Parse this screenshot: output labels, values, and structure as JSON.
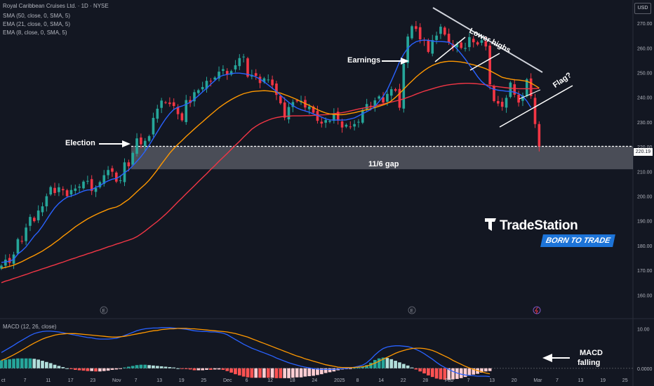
{
  "header": {
    "title": "Royal Caribbean Cruises Ltd. · 1D · NYSE",
    "indicators": [
      "SMA (50, close, 0, SMA, 5)",
      "EMA (21, close, 0, SMA, 5)",
      "EMA (8, close, 0, SMA, 5)"
    ],
    "macd_label": "MACD (12, 26, close)",
    "currency": "USD"
  },
  "annotations": {
    "election": "Election",
    "earnings": "Earnings",
    "lower_highs": "Lower highs",
    "flag": "Flag?",
    "gap": "11/6 gap",
    "macd_falling_1": "MACD",
    "macd_falling_2": "falling"
  },
  "brand": {
    "name": "TradeStation",
    "tagline": "BORN TO TRADE"
  },
  "colors": {
    "background": "#131722",
    "up": "#26a69a",
    "down": "#f23645",
    "sma50": "#f23645",
    "ema21": "#ff9800",
    "ema8": "#2962ff",
    "macd": "#2962ff",
    "signal": "#ff9800",
    "gap_zone": "#9598a1"
  },
  "chart_data": {
    "type": "line",
    "price": {
      "ylim": [
        153,
        276
      ],
      "yticks": [
        160,
        170,
        180,
        190,
        200,
        210,
        220,
        230,
        240,
        250,
        260,
        270
      ],
      "ytick_labels": [
        "160.00",
        "170.00",
        "180.00",
        "190.00",
        "200.00",
        "210.00",
        "220.00",
        "230.00",
        "240.00",
        "250.00",
        "260.00",
        "270.00"
      ],
      "last_price": 220.19,
      "last_price_label": "220.19",
      "gap_zone": [
        210.9,
        220.2
      ],
      "closes": [
        171.9,
        174.3,
        173.0,
        176.4,
        182.6,
        181.8,
        187.3,
        191.6,
        189.9,
        194.2,
        195.9,
        200.0,
        203.7,
        201.3,
        203.6,
        202.4,
        200.0,
        202.5,
        203.1,
        203.9,
        205.9,
        206.2,
        202.1,
        203.3,
        205.7,
        208.5,
        210.6,
        209.9,
        205.9,
        206.4,
        213.7,
        212.1,
        217.5,
        223.4,
        221.0,
        222.4,
        224.3,
        231.7,
        235.4,
        238.7,
        237.9,
        237.3,
        236.5,
        233.2,
        230.7,
        238.9,
        237.7,
        242.1,
        242.9,
        244.2,
        246.7,
        246.5,
        248.0,
        250.4,
        251.4,
        249.2,
        250.6,
        253.0,
        255.9,
        256.5,
        248.4,
        249.1,
        248.7,
        245.8,
        247.7,
        247.2,
        244.9,
        241.0,
        237.6,
        231.8,
        236.1,
        238.1,
        238.4,
        238.6,
        235.9,
        236.3,
        233.8,
        230.5,
        229.4,
        230.8,
        230.5,
        233.5,
        230.6,
        227.8,
        228.9,
        228.2,
        229.2,
        230.1,
        234.9,
        237.3,
        236.3,
        238.8,
        240.4,
        237.9,
        241.4,
        243.3,
        242.7,
        235.8,
        253.6,
        264.6,
        268.8,
        267.7,
        263.5,
        262.9,
        258.4,
        263.2,
        265.0,
        268.6,
        265.4,
        262.3,
        260.3,
        261.5,
        260.0,
        260.0,
        264.4,
        262.3,
        261.4,
        263.1,
        260.6,
        245.3,
        238.5,
        237.5,
        236.2,
        239.8,
        246.0,
        241.1,
        237.9,
        240.8,
        247.3,
        240.5,
        229.2,
        220.2
      ],
      "series": [
        {
          "name": "SMA (50, close, 0, SMA, 5)",
          "values": [
            165.0,
            165.6,
            166.1,
            166.7,
            167.2,
            167.8,
            168.3,
            168.9,
            169.5,
            170.0,
            170.6,
            171.1,
            171.7,
            172.2,
            172.8,
            173.3,
            173.9,
            174.5,
            175.0,
            175.6,
            176.1,
            176.7,
            177.2,
            177.8,
            178.3,
            178.9,
            179.5,
            180.0,
            180.6,
            181.1,
            181.7,
            182.2,
            182.8,
            183.6,
            184.7,
            185.9,
            187.2,
            188.5,
            189.8,
            191.2,
            192.7,
            194.3,
            196.0,
            197.7,
            199.3,
            201.0,
            202.6,
            204.2,
            205.9,
            207.5,
            209.1,
            210.8,
            212.4,
            214.1,
            215.7,
            217.3,
            219.0,
            220.6,
            222.2,
            223.9,
            225.5,
            227.1,
            228.3,
            229.3,
            230.1,
            230.8,
            231.4,
            231.8,
            232.1,
            232.3,
            232.4,
            232.5,
            232.5,
            232.5,
            232.6,
            232.6,
            232.7,
            232.8,
            232.9,
            233.0,
            233.2,
            233.4,
            233.6,
            233.8,
            234.1,
            234.5,
            234.9,
            235.3,
            235.6,
            235.9,
            236.2,
            236.5,
            236.9,
            237.3,
            237.7,
            238.1,
            238.5,
            238.9,
            239.4,
            240.0,
            240.6,
            241.3,
            241.9,
            242.5,
            243.0,
            243.5,
            244.0,
            244.4,
            244.8,
            245.1,
            245.3,
            245.5,
            245.6,
            245.7,
            245.7,
            245.6,
            245.5,
            245.3,
            245.1,
            244.8,
            244.5,
            244.3,
            244.1,
            243.9,
            243.7,
            243.6,
            243.5,
            243.5,
            243.5,
            243.5,
            243.6,
            243.6
          ]
        },
        {
          "name": "EMA (21, close, 0, SMA, 5)",
          "values": [
            170.8,
            171.2,
            171.6,
            172.1,
            172.8,
            173.5,
            174.4,
            175.2,
            176.0,
            176.9,
            177.8,
            178.9,
            180.0,
            181.2,
            182.4,
            183.8,
            185.0,
            186.3,
            187.6,
            188.7,
            189.8,
            190.8,
            191.7,
            192.5,
            193.3,
            194.0,
            194.7,
            195.2,
            195.6,
            196.4,
            197.6,
            198.7,
            200.2,
            201.8,
            203.3,
            204.8,
            206.5,
            208.5,
            210.7,
            213.0,
            215.2,
            217.4,
            219.3,
            221.0,
            222.5,
            224.2,
            225.7,
            227.2,
            228.7,
            230.1,
            231.6,
            233.0,
            234.4,
            235.8,
            237.0,
            238.1,
            239.1,
            240.0,
            240.8,
            241.5,
            241.9,
            242.3,
            242.5,
            242.6,
            242.7,
            242.6,
            242.4,
            242.1,
            241.7,
            241.1,
            240.5,
            239.8,
            239.1,
            238.3,
            237.5,
            236.7,
            235.9,
            235.0,
            234.3,
            233.7,
            233.3,
            233.1,
            233.0,
            233.0,
            233.2,
            233.5,
            233.8,
            234.2,
            234.6,
            235.0,
            235.4,
            235.9,
            236.4,
            236.9,
            237.6,
            238.6,
            240.0,
            241.6,
            243.3,
            245.0,
            246.6,
            248.2,
            249.6,
            250.9,
            252.0,
            252.9,
            253.6,
            254.1,
            254.4,
            254.6,
            254.6,
            254.5,
            254.3,
            254.0,
            253.6,
            253.2,
            252.7,
            252.2,
            251.6,
            250.8,
            249.9,
            249.0,
            248.1,
            247.7,
            247.4,
            247.1,
            247.0,
            246.8,
            246.5,
            245.8,
            244.8,
            243.8
          ]
        },
        {
          "name": "EMA (8, close, 0, SMA, 5)",
          "values": [
            173.2,
            173.4,
            173.7,
            174.4,
            176.6,
            177.9,
            179.5,
            181.7,
            183.9,
            185.6,
            187.9,
            190.4,
            193.0,
            195.3,
            197.1,
            198.5,
            199.6,
            200.1,
            200.6,
            201.4,
            202.1,
            202.5,
            202.6,
            203.6,
            204.2,
            205.4,
            206.2,
            206.9,
            207.2,
            208.1,
            209.5,
            210.6,
            212.3,
            214.1,
            216.0,
            218.2,
            220.7,
            223.4,
            226.1,
            228.8,
            231.3,
            233.4,
            235.1,
            236.0,
            236.5,
            237.2,
            238.0,
            239.2,
            240.7,
            242.2,
            243.7,
            245.3,
            246.8,
            248.3,
            248.9,
            249.3,
            249.6,
            249.8,
            249.8,
            249.6,
            249.3,
            248.9,
            248.3,
            247.4,
            246.3,
            245.0,
            243.7,
            242.4,
            240.9,
            239.4,
            238.0,
            236.7,
            235.7,
            235.0,
            234.5,
            234.0,
            233.3,
            232.7,
            232.0,
            231.3,
            230.9,
            230.8,
            230.8,
            230.8,
            230.9,
            231.3,
            231.7,
            232.5,
            233.4,
            234.2,
            235.1,
            236.4,
            238.3,
            240.4,
            243.1,
            246.7,
            250.5,
            254.4,
            257.5,
            259.9,
            261.5,
            262.5,
            263.0,
            263.2,
            263.1,
            262.8,
            262.6,
            262.6,
            262.5,
            262.3,
            261.2,
            259.6,
            257.6,
            255.5,
            253.1,
            250.8,
            248.4,
            246.4,
            245.0,
            243.9,
            243.3,
            242.9,
            242.7,
            242.5,
            242.4,
            242.1,
            241.5,
            240.5,
            238.5,
            235.9
          ]
        }
      ]
    },
    "macd": {
      "ylim": [
        -3.6,
        12.4
      ],
      "yticks": [
        0,
        10
      ],
      "ytick_labels": [
        "0.0000",
        "10.00"
      ],
      "macd_line": [
        4.0,
        4.6,
        5.2,
        5.8,
        6.5,
        7.1,
        7.7,
        8.3,
        8.8,
        9.1,
        9.3,
        9.4,
        9.4,
        9.3,
        9.2,
        9.0,
        8.8,
        8.6,
        8.4,
        8.2,
        8.0,
        7.8,
        7.7,
        7.5,
        7.4,
        7.4,
        7.4,
        7.5,
        7.6,
        7.9,
        8.3,
        8.7,
        9.1,
        9.5,
        9.8,
        10.0,
        10.1,
        10.2,
        10.2,
        10.3,
        10.3,
        10.3,
        10.2,
        10.1,
        10.0,
        9.9,
        9.7,
        9.5,
        9.4,
        9.3,
        9.3,
        9.2,
        9.2,
        9.1,
        8.9,
        8.5,
        7.9,
        7.3,
        6.7,
        6.1,
        5.6,
        5.1,
        4.7,
        4.3,
        3.9,
        3.5,
        3.1,
        2.6,
        2.2,
        1.8,
        1.4,
        1.1,
        0.8,
        0.5,
        0.3,
        0.1,
        -0.1,
        -0.2,
        -0.3,
        -0.3,
        -0.3,
        -0.3,
        -0.2,
        -0.1,
        0.0,
        0.1,
        0.3,
        0.5,
        0.8,
        1.4,
        2.3,
        3.4,
        4.3,
        5.0,
        5.4,
        5.6,
        5.7,
        5.7,
        5.6,
        5.5,
        5.2,
        4.8,
        4.3,
        3.7,
        3.0,
        2.3,
        1.5,
        0.8,
        0.2,
        -0.3,
        -0.8,
        -1.2,
        -1.5,
        -1.7,
        -1.8,
        -1.9,
        -2.0,
        -2.0,
        -2.0,
        -2.1
      ],
      "signal_line": [
        2.0,
        2.4,
        2.9,
        3.4,
        4.0,
        4.6,
        5.2,
        5.8,
        6.4,
        6.9,
        7.4,
        7.8,
        8.1,
        8.4,
        8.6,
        8.7,
        8.8,
        8.8,
        8.8,
        8.7,
        8.6,
        8.5,
        8.4,
        8.3,
        8.2,
        8.1,
        8.0,
        7.9,
        7.9,
        8.0,
        8.1,
        8.3,
        8.5,
        8.7,
        8.9,
        9.1,
        9.3,
        9.5,
        9.6,
        9.8,
        9.9,
        10.0,
        10.0,
        10.1,
        10.1,
        10.1,
        10.0,
        10.0,
        9.9,
        9.8,
        9.7,
        9.6,
        9.5,
        9.4,
        9.3,
        9.2,
        9.0,
        8.8,
        8.5,
        8.2,
        7.9,
        7.5,
        7.1,
        6.7,
        6.3,
        5.9,
        5.5,
        5.1,
        4.7,
        4.3,
        3.9,
        3.5,
        3.1,
        2.8,
        2.4,
        2.1,
        1.8,
        1.5,
        1.2,
        0.9,
        0.7,
        0.5,
        0.3,
        0.2,
        0.2,
        0.2,
        0.2,
        0.3,
        0.4,
        0.6,
        0.9,
        1.3,
        1.8,
        2.3,
        2.8,
        3.3,
        3.8,
        4.2,
        4.5,
        4.8,
        5.0,
        5.1,
        5.1,
        5.0,
        4.8,
        4.5,
        4.1,
        3.6,
        3.1,
        2.6,
        2.0,
        1.5,
        1.0,
        0.5,
        0.1,
        -0.3,
        -0.6,
        -0.9,
        -1.2,
        -1.4
      ]
    },
    "x_ticks": [
      "ct",
      "7",
      "11",
      "17",
      "23",
      "Nov",
      "7",
      "13",
      "19",
      "25",
      "Dec",
      "6",
      "12",
      "18",
      "24",
      "2025",
      "8",
      "14",
      "22",
      "28",
      "Feb",
      "7",
      "13",
      "20",
      "Mar",
      "7",
      "13",
      "19",
      "25"
    ]
  }
}
